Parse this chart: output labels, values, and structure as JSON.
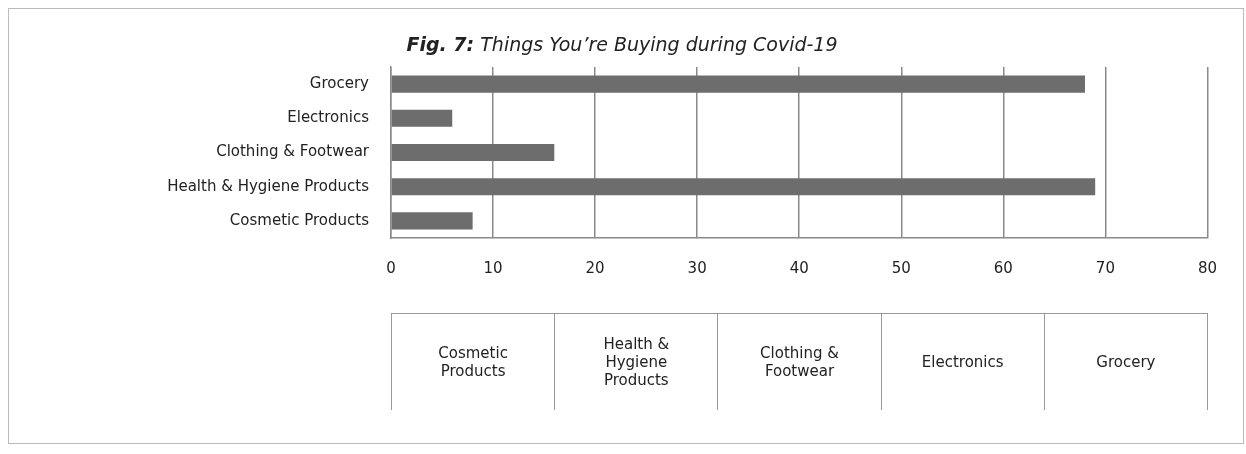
{
  "chart_data": {
    "type": "bar",
    "orientation": "horizontal",
    "title": "Fig. 7: Things You’re Buying during Covid-19",
    "categories": [
      "Grocery",
      "Electronics",
      "Clothing & Footwear",
      "Health & Hygiene Products",
      "Cosmetic Products"
    ],
    "values": [
      68,
      6,
      16,
      69,
      8
    ],
    "color": "#6d6d6d",
    "xlim": [
      0,
      80
    ],
    "xticks": [
      0,
      10,
      20,
      30,
      40,
      50,
      60,
      70,
      80
    ],
    "grid": "x",
    "legend": false
  }
}
